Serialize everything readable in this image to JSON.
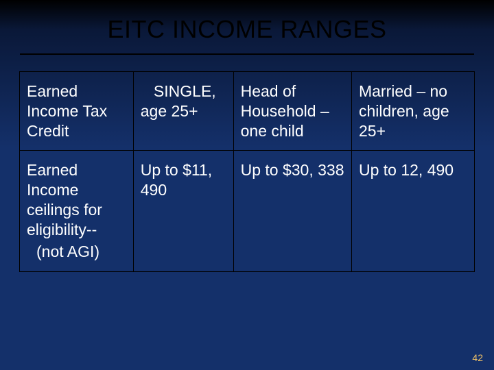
{
  "title": "EITC INCOME RANGES",
  "page_number": "42",
  "styling": {
    "background_gradient_top": "#000000",
    "background_gradient_mid": "#0a1838",
    "background_gradient_bottom": "#14306a",
    "title_color": "#000000",
    "title_fontsize": 36,
    "hr_color": "#000000",
    "table_border_color": "#000000",
    "cell_text_color": "#ffffff",
    "cell_fontsize": 23,
    "page_num_color": "#f2c368",
    "page_num_fontsize": 14,
    "column_widths_pct": [
      25,
      22,
      26,
      27
    ]
  },
  "table": {
    "rows": [
      {
        "c1": "Earned Income Tax Credit",
        "c2": "   SINGLE,    age 25+",
        "c3": "Head of Household – one child",
        "c4": "Married – no children, age 25+"
      },
      {
        "c1_main": "Earned Income ceilings for eligibility--",
        "c1_sub": "(not AGI)",
        "c2": "Up to $11, 490",
        "c3": "Up to $30, 338",
        "c4": "Up to 12, 490"
      }
    ]
  }
}
